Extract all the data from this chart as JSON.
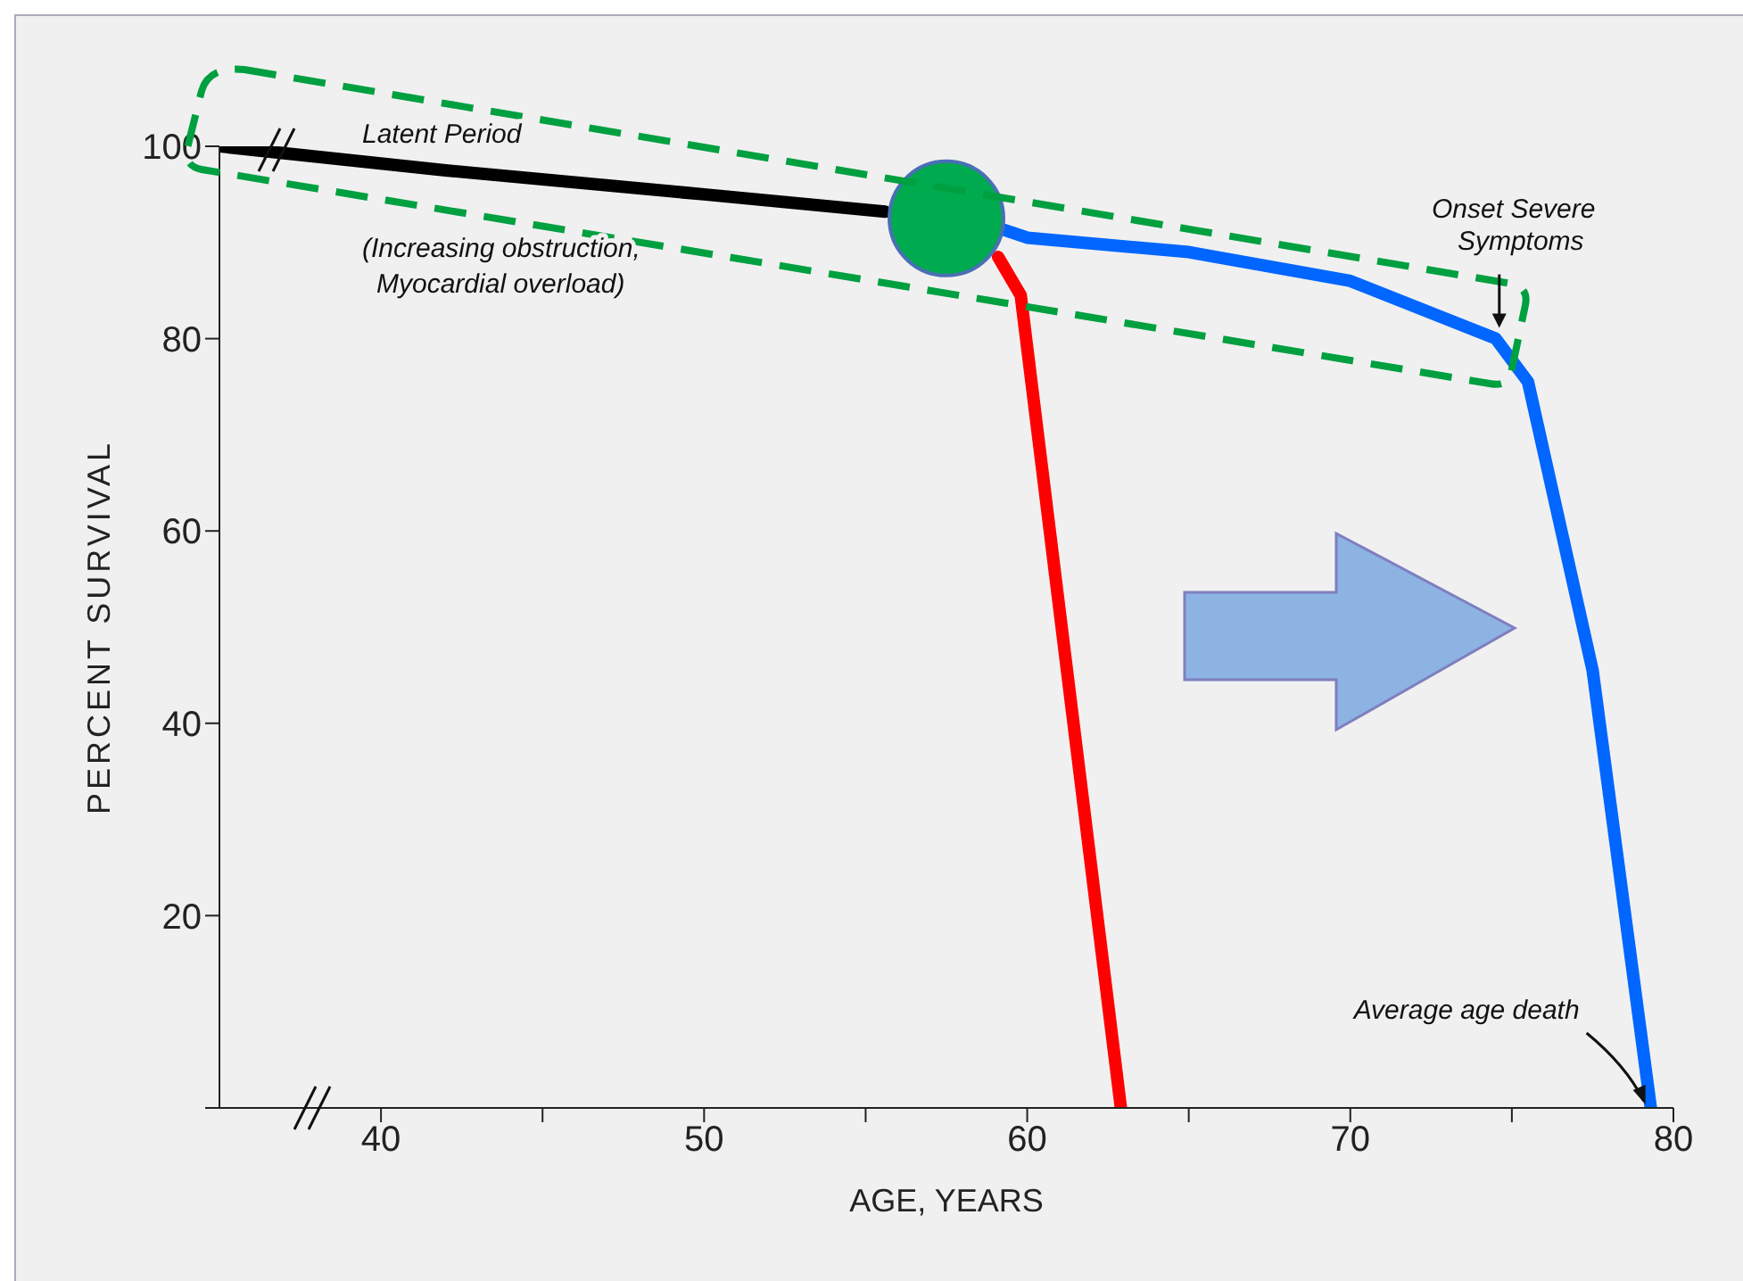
{
  "chart_data": {
    "type": "line",
    "xlabel": "AGE, YEARS",
    "ylabel": "PERCENT SURVIVAL",
    "xlim": [
      35,
      80
    ],
    "xticks": [
      40,
      {
        "value": 45,
        "label": null
      },
      50,
      {
        "value": 55,
        "label": null
      },
      60,
      {
        "value": 65,
        "label": null
      },
      70,
      {
        "value": 75,
        "label": null
      },
      80
    ],
    "ylim": [
      0,
      100
    ],
    "yticks": [
      {
        "value": 0,
        "label": null
      },
      20,
      40,
      60,
      80,
      100
    ],
    "marker": "none",
    "line_style": "solid",
    "series": [
      {
        "color": "#000000",
        "x": [
          35,
          42,
          50,
          55.6
        ],
        "values": [
          100,
          97.5,
          95,
          93.2
        ]
      },
      {
        "color": "#ff0000",
        "x": [
          59.1,
          59.8,
          62.9
        ],
        "values": [
          88.5,
          84.5,
          0
        ]
      },
      {
        "color": "#0066ff",
        "x": [
          59.3,
          60,
          65,
          70,
          74.5,
          75.5,
          77.5,
          79.3
        ],
        "values": [
          91.3,
          90.5,
          89,
          86,
          80,
          75.5,
          45.5,
          0
        ]
      },
      {
        "type": "scatter",
        "marker": "circle",
        "color": "#00aa4f",
        "x": [
          57.5
        ],
        "values": [
          92.5
        ]
      }
    ],
    "annotations": [
      "Latent Period",
      "(Increasing obstruction, Myocardial overload)",
      {
        "text": "Onset Severe Symptoms",
        "x": 74.5,
        "y": 80
      },
      {
        "text": "Average age death",
        "x": 79.3,
        "y": 0
      }
    ]
  }
}
